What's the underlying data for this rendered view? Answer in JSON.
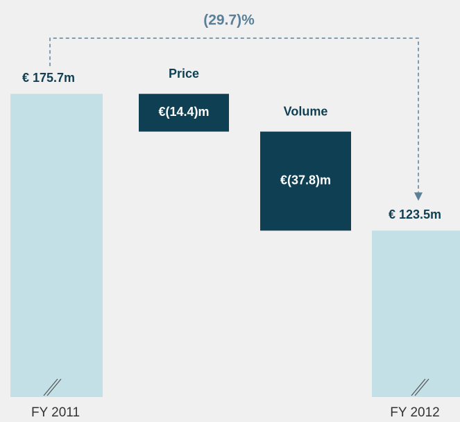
{
  "chart_data": {
    "type": "waterfall",
    "categories": [
      "FY 2011",
      "Price",
      "Volume",
      "FY 2012"
    ],
    "values": [
      175.7,
      -14.4,
      -37.8,
      123.5
    ],
    "value_labels": [
      "€ 175.7m",
      "€(14.4)m",
      "€(37.8)m",
      "€ 123.5m"
    ],
    "annotation": "(29.7)%",
    "total_color": "#c2e0e6",
    "delta_color": "#0e3f52",
    "annotation_color": "#5a7f99",
    "ylim": [
      60,
      180
    ],
    "axis_break": true
  }
}
